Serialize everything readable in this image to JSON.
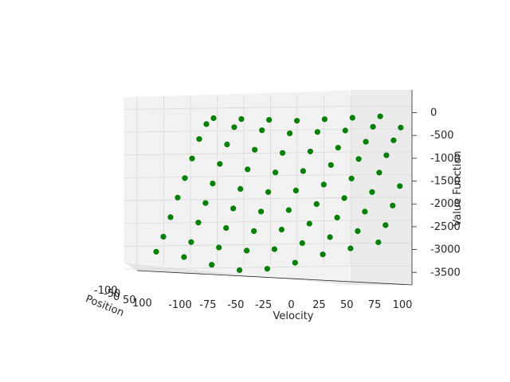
{
  "chart_data": {
    "type": "scatter",
    "projection": "3d",
    "title": "",
    "xlabel": "Velocity",
    "ylabel": "Position",
    "zlabel": "Value Function",
    "x_ticks": [
      -100,
      -75,
      -50,
      -25,
      0,
      25,
      50,
      75,
      100
    ],
    "z_ticks": [
      0,
      -500,
      -1000,
      -1500,
      -2000,
      -2500,
      -3000,
      -3500
    ],
    "y_ticks": [
      -100,
      -50,
      0,
      50,
      100
    ],
    "xlim": [
      -100,
      100
    ],
    "ylim": [
      -100,
      100
    ],
    "zlim": [
      -3600,
      200
    ],
    "grid": true,
    "legend": "none",
    "marker_color": "#007f00",
    "x_points": [
      -100,
      -75,
      -50,
      -25,
      0,
      25,
      50,
      75,
      100
    ],
    "y_points": [
      -100,
      -75,
      -50,
      -25,
      0,
      25,
      50,
      75,
      100
    ],
    "z_grid": [
      [
        -3000,
        -3100,
        -3250,
        -3350,
        -3300,
        -3150,
        -2950,
        -2800,
        -2650
      ],
      [
        -2700,
        -2800,
        -2900,
        -2950,
        -2900,
        -2750,
        -2600,
        -2450,
        -2300
      ],
      [
        -2300,
        -2400,
        -2500,
        -2550,
        -2500,
        -2350,
        -2200,
        -2050,
        -1900
      ],
      [
        -1900,
        -2000,
        -2100,
        -2150,
        -2100,
        -1950,
        -1800,
        -1650,
        -1500
      ],
      [
        -1500,
        -1600,
        -1700,
        -1750,
        -1700,
        -1550,
        -1400,
        -1250,
        -1150
      ],
      [
        -1100,
        -1200,
        -1300,
        -1350,
        -1300,
        -1150,
        -1000,
        -900,
        -850
      ],
      [
        -700,
        -800,
        -900,
        -950,
        -900,
        -800,
        -650,
        -600,
        -600
      ],
      [
        -400,
        -450,
        -500,
        -550,
        -500,
        -450,
        -350,
        -350,
        -350
      ],
      [
        -300,
        -300,
        -300,
        -300,
        -250,
        -200,
        -150,
        -150,
        -200
      ]
    ]
  }
}
